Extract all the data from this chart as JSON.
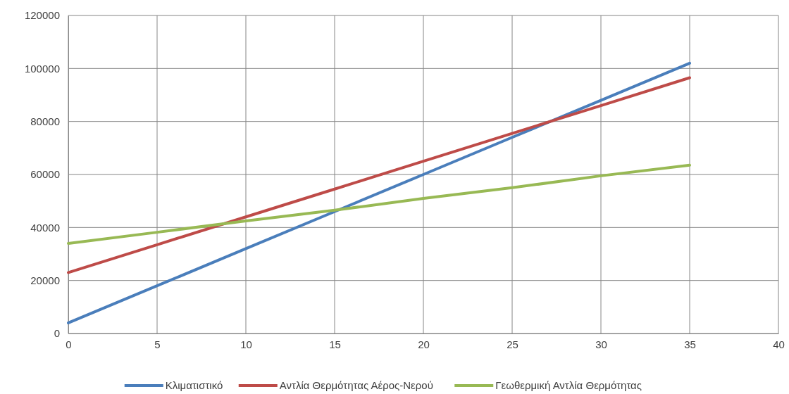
{
  "chart_data": {
    "type": "line",
    "x": [
      0,
      5,
      10,
      15,
      20,
      25,
      30,
      35
    ],
    "series": [
      {
        "name": "Κλιματιστικό",
        "color": "#4a7ebb",
        "values": [
          4000,
          18000,
          32000,
          46000,
          60000,
          74000,
          88000,
          102000
        ]
      },
      {
        "name": "Αντλία Θερμότητας Αέρος-Νερού",
        "color": "#be4b48",
        "values": [
          23000,
          33500,
          44000,
          54500,
          65000,
          75500,
          86000,
          96500
        ]
      },
      {
        "name": "Γεωθερμική Αντλία Θερμότητας",
        "color": "#98b954",
        "values": [
          34000,
          38200,
          42500,
          46500,
          51000,
          55000,
          59500,
          63500
        ]
      }
    ],
    "xlim": [
      0,
      40
    ],
    "xticks": [
      0,
      5,
      10,
      15,
      20,
      25,
      30,
      35,
      40
    ],
    "ylim": [
      0,
      120000
    ],
    "yticks": [
      0,
      20000,
      40000,
      60000,
      80000,
      100000,
      120000
    ],
    "grid": true,
    "legend": "bottom",
    "marker": "none",
    "line_style": "solid"
  }
}
